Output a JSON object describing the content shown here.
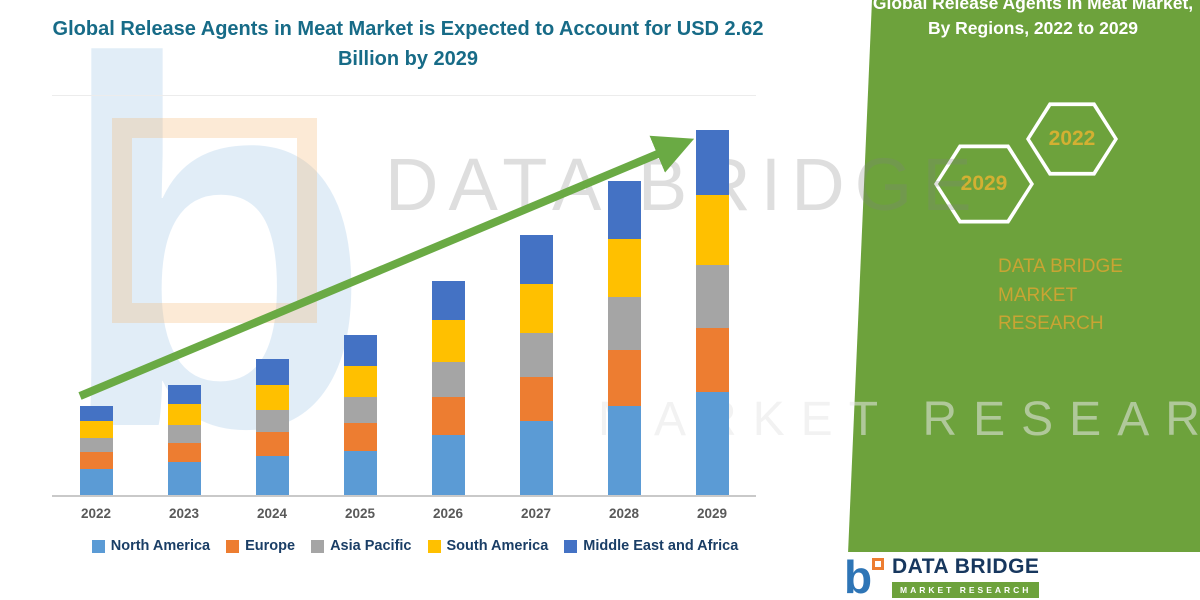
{
  "chart": {
    "title": "Global Release Agents in Meat Market is Expected to Account for USD 2.62 Billion by 2029"
  },
  "chart_data": {
    "type": "bar",
    "stacked": true,
    "title": "Global Release Agents in Meat Market is Expected to Account for USD 2.62 Billion by 2029",
    "unit": "USD Billion",
    "categories": [
      "2022",
      "2023",
      "2024",
      "2025",
      "2026",
      "2027",
      "2028",
      "2029"
    ],
    "series": [
      {
        "name": "North America",
        "color": "#5B9BD5",
        "values": [
          0.19,
          0.24,
          0.28,
          0.32,
          0.43,
          0.53,
          0.64,
          0.74
        ]
      },
      {
        "name": "Europe",
        "color": "#ED7D31",
        "values": [
          0.12,
          0.14,
          0.17,
          0.2,
          0.27,
          0.32,
          0.4,
          0.46
        ]
      },
      {
        "name": "Asia Pacific",
        "color": "#A5A5A5",
        "values": [
          0.1,
          0.13,
          0.16,
          0.19,
          0.25,
          0.32,
          0.38,
          0.45
        ]
      },
      {
        "name": "South America",
        "color": "#FFC000",
        "values": [
          0.12,
          0.15,
          0.18,
          0.22,
          0.3,
          0.35,
          0.42,
          0.5
        ]
      },
      {
        "name": "Middle East and Africa",
        "color": "#4472C4",
        "values": [
          0.11,
          0.14,
          0.19,
          0.22,
          0.28,
          0.35,
          0.42,
          0.47
        ]
      }
    ],
    "totals": [
      0.64,
      0.8,
      0.98,
      1.15,
      1.53,
      1.87,
      2.26,
      2.62
    ],
    "ylim": [
      0,
      2.8
    ],
    "gridlines": false,
    "legend_position": "bottom",
    "annotations": [
      "upward green trend arrow from 2022 toward 2029"
    ]
  },
  "panel": {
    "title": "Global Release Agents in Meat Market, By Regions, 2022 to 2029",
    "hexagons": [
      {
        "label": "2029"
      },
      {
        "label": "2022"
      }
    ],
    "brand_lines": [
      "DATA BRIDGE MARKET",
      "RESEARCH"
    ],
    "green": "#6da23c",
    "gold": "#c9a433"
  },
  "watermarks": {
    "logo_letter": "b",
    "primary": "DATA BRIDGE",
    "secondary": "MARKET RESEARCH"
  },
  "footer": {
    "logo_letter": "b",
    "brand": "DATA BRIDGE",
    "tagline": "MARKET RESEARCH"
  }
}
